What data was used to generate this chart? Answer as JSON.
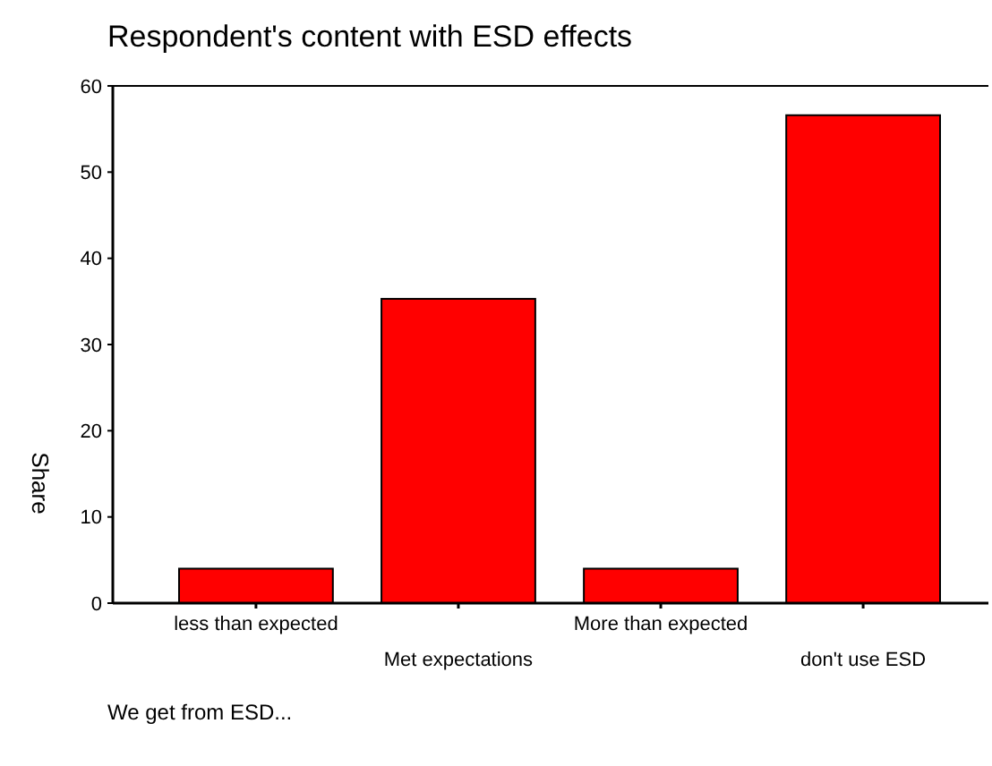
{
  "chart_data": {
    "type": "bar",
    "title": "Respondent's content with ESD effects",
    "xlabel": "We get from ESD...",
    "ylabel": "Share",
    "categories": [
      "less than expected",
      "Met expectations",
      "More than expected",
      "don't use ESD"
    ],
    "values": [
      4.0,
      35.3,
      4.0,
      56.6
    ],
    "color": "#ff0000",
    "ylim": [
      0,
      60
    ],
    "yticks": [
      0,
      10,
      20,
      30,
      40,
      50,
      60
    ],
    "grid": false
  }
}
